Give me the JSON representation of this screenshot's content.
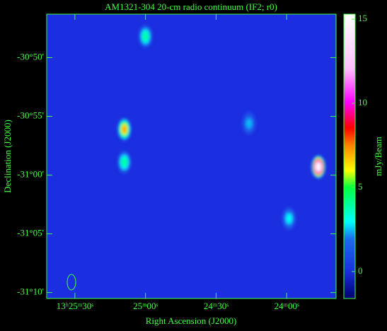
{
  "chart_data": {
    "type": "image",
    "title": "AM1321-304  20-cm radio continuum (IF2; r0)",
    "x_label": "Right Ascension (J2000)",
    "y_label": "Declination (J2000)",
    "xlim": [
      48342,
      48219
    ],
    "xticks": [
      {
        "value": 48330,
        "label": "13ʰ25ᵐ30ˢ"
      },
      {
        "value": 48300,
        "label": "25ᵐ00ˢ"
      },
      {
        "value": 48270,
        "label": "24ᵐ30ˢ"
      },
      {
        "value": 48240,
        "label": "24ᵐ00ˢ"
      }
    ],
    "ylim": [
      -1870.5,
      -1846.3
    ],
    "yticks": [
      {
        "value": -1850,
        "label": "-30°50'"
      },
      {
        "value": -1855,
        "label": "-30°55'"
      },
      {
        "value": -1860,
        "label": "-31°00'"
      },
      {
        "value": -1865,
        "label": "-31°05'"
      },
      {
        "value": -1870,
        "label": "-31°10'"
      }
    ],
    "colorbar_label": "mJy/Beam",
    "colorbar_lim": [
      -1.6,
      15.3
    ],
    "colorbar_ticks": [
      0,
      5,
      10,
      15
    ],
    "sources": {
      "ra": [
        48300,
        48309,
        48309,
        48226.5,
        48256,
        48239
      ],
      "dec": [
        -1848.2,
        -1856.1,
        -1858.9,
        -1859.3,
        -1855.6,
        -1863.7
      ],
      "peak": [
        4,
        7,
        4,
        15,
        2.5,
        3
      ]
    }
  }
}
